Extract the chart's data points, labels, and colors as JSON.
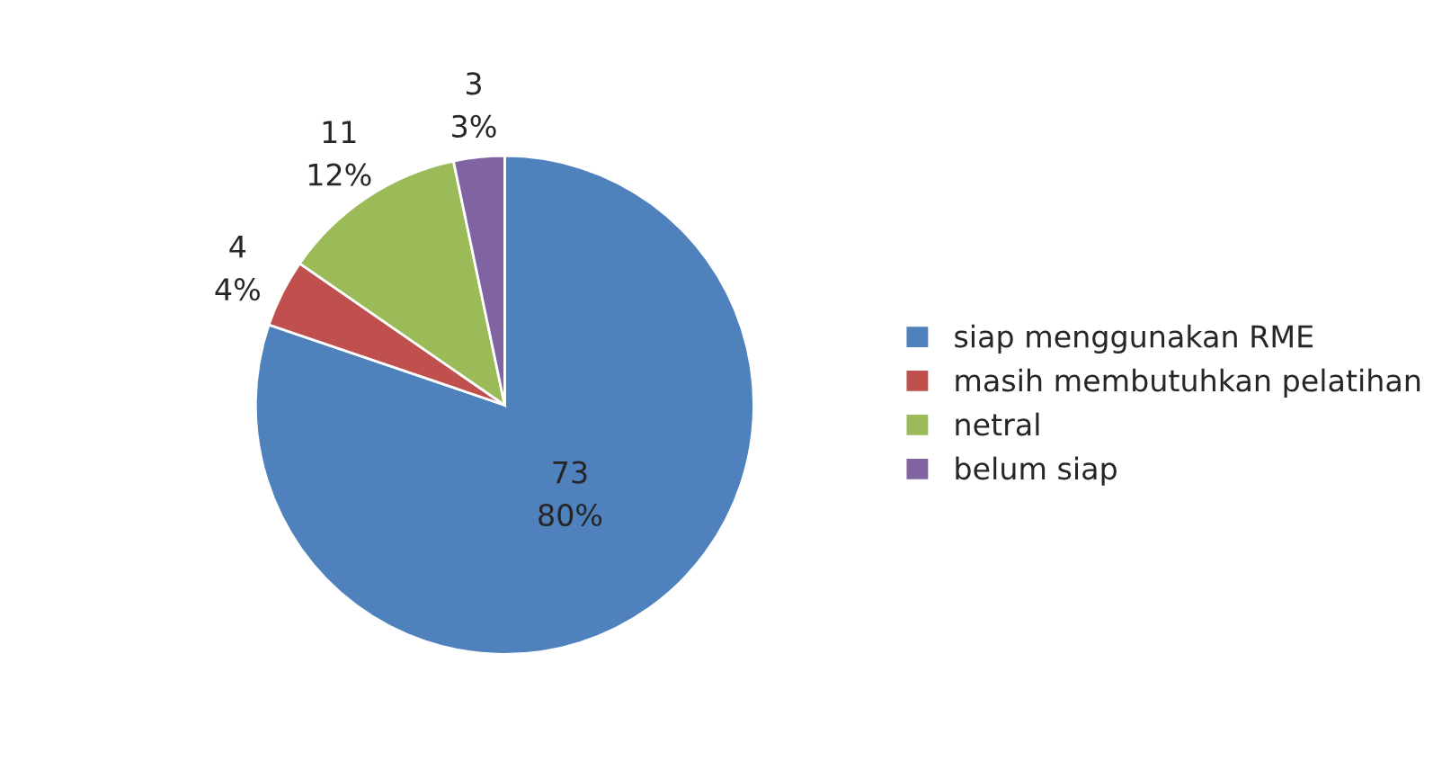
{
  "chart_data": {
    "type": "pie",
    "categories": [
      "siap menggunakan RME",
      "masih membutuhkan pelatihan",
      "netral",
      "belum siap"
    ],
    "values": [
      73,
      4,
      11,
      3
    ],
    "colors": [
      "#4f81bd",
      "#c0504d",
      "#9bbb59",
      "#8064a2"
    ],
    "value_labels": [
      "73\n80%",
      "4\n4%",
      "11\n12%",
      "3\n3%"
    ],
    "legend": "right"
  }
}
